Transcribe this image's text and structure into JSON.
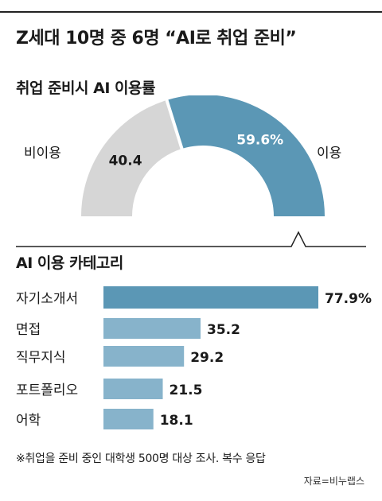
{
  "title": "Z세대 10명 중 6명 “AI로 취업 준비”",
  "note": "※취업을 준비 중인 대학생 500명 대상 조사. 복수 응답",
  "source": "자료=비누랩스",
  "colors": {
    "primary": "#5b97b5",
    "bar_light": "#87b3cb",
    "grey": "#d6d6d6",
    "rule": "#222222"
  },
  "chart_data": [
    {
      "type": "pie",
      "title": "취업 준비시 AI 이용률",
      "categories": [
        "비이용",
        "이용"
      ],
      "values": [
        40.4,
        59.6
      ],
      "value_labels": [
        "40.4",
        "59.6%"
      ]
    },
    {
      "type": "bar",
      "title": "AI 이용 카테고리",
      "categories": [
        "자기소개서",
        "면접",
        "직무지식",
        "포트폴리오",
        "어학"
      ],
      "values": [
        77.9,
        35.2,
        29.2,
        21.5,
        18.1
      ],
      "value_labels": [
        "77.9%",
        "35.2",
        "29.2",
        "21.5",
        "18.1"
      ]
    }
  ]
}
